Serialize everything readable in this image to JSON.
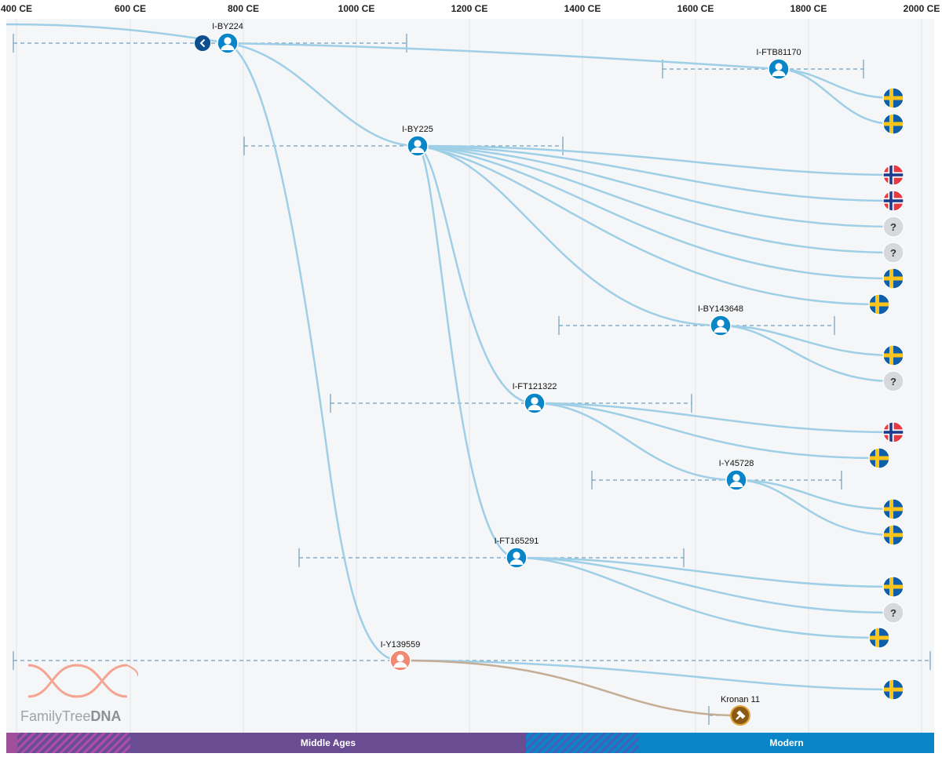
{
  "timeline": {
    "ticks": [
      "400 CE",
      "600 CE",
      "800 CE",
      "1000 CE",
      "1200 CE",
      "1400 CE",
      "1600 CE",
      "1800 CE",
      "2000 CE"
    ]
  },
  "colors": {
    "branch": "#9fcfe6",
    "branch_ancient": "#c4ad94",
    "node_blue": "#0a86c8",
    "node_orange": "#f08a74",
    "ancient_node": "#8a5a14",
    "ci_line": "#6f9fbd",
    "sweden_blue": "#0f5eaa",
    "sweden_yellow": "#fcc419",
    "norway_red": "#e63946",
    "norway_blue": "#1d3b8a",
    "unknown_grey": "#d6d8db"
  },
  "nodes": {
    "by224": "I-BY224",
    "ftb81170": "I-FTB81170",
    "by225": "I-BY225",
    "by143648": "I-BY143648",
    "ft121322": "I-FT121322",
    "y45728": "I-Y45728",
    "ft165291": "I-FT165291",
    "y139559": "I-Y139559",
    "ancient_sample": "Kronan 11"
  },
  "leaves": [
    {
      "country": "sweden"
    },
    {
      "country": "sweden"
    },
    {
      "country": "norway"
    },
    {
      "country": "norway"
    },
    {
      "country": "unknown"
    },
    {
      "country": "unknown"
    },
    {
      "country": "sweden"
    },
    {
      "country": "sweden"
    },
    {
      "country": "sweden"
    },
    {
      "country": "unknown"
    },
    {
      "country": "norway"
    },
    {
      "country": "sweden"
    },
    {
      "country": "sweden"
    },
    {
      "country": "sweden"
    },
    {
      "country": "sweden"
    },
    {
      "country": "unknown"
    },
    {
      "country": "sweden"
    },
    {
      "country": "sweden"
    }
  ],
  "unknown_symbol": "?",
  "logo": {
    "name_part1": "FamilyTree",
    "name_part2": "DNA"
  },
  "eras": {
    "middle": "Middle Ages",
    "modern": "Modern"
  },
  "controls": {
    "back_icon": "chevron-left-icon"
  }
}
